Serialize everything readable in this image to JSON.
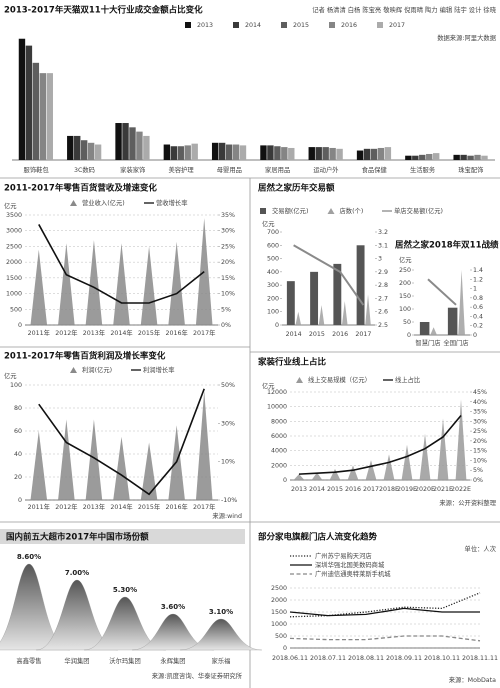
{
  "chart_data": [
    {
      "type": "bar",
      "title": "2013-2017年天猫双11十大行业成交金额占比变化",
      "byline": "记者 杨清清 白杨 陈宝亮 敬映辉 倪雨晴 陶力  编辑 陆宇  设计 徐晓",
      "source": "数据来源:阿里大数据",
      "categories": [
        "服饰鞋包",
        "3C数码",
        "家装家饰",
        "美容护理",
        "母婴用品",
        "家居用品",
        "运动户外",
        "食品保健",
        "生活服务",
        "珠宝配饰"
      ],
      "series": [
        {
          "name": "2013",
          "color": "#111111",
          "values": [
            28.2,
            5.6,
            8.6,
            3.6,
            4.0,
            3.4,
            3.0,
            2.2,
            1.0,
            1.2
          ]
        },
        {
          "name": "2014",
          "color": "#3a3a3a",
          "values": [
            26.6,
            5.6,
            8.6,
            3.2,
            4.0,
            3.4,
            3.0,
            2.6,
            1.0,
            1.2
          ]
        },
        {
          "name": "2015",
          "color": "#5e5e5e",
          "values": [
            22.6,
            4.6,
            7.6,
            3.2,
            3.6,
            3.2,
            3.0,
            2.6,
            1.2,
            1.0
          ]
        },
        {
          "name": "2016",
          "color": "#858585",
          "values": [
            20.2,
            4.0,
            6.6,
            3.4,
            3.6,
            3.0,
            2.8,
            2.8,
            1.4,
            1.2
          ]
        },
        {
          "name": "2017",
          "color": "#ababab",
          "values": [
            20.2,
            3.6,
            5.6,
            3.8,
            3.4,
            2.8,
            2.6,
            3.0,
            1.6,
            1.0
          ]
        }
      ]
    },
    {
      "type": "combo",
      "title": "2011-2017年零售百货营收及增速变化",
      "ylabel": "亿元",
      "categories": [
        "2011年",
        "2012年",
        "2013年",
        "2014年",
        "2015年",
        "2016年",
        "2017年"
      ],
      "series": [
        {
          "name": "营业收入(亿元)",
          "mark": "triangle",
          "color": "#8a8a8a",
          "values": [
            2400,
            2600,
            2700,
            2600,
            2500,
            2650,
            3400
          ]
        },
        {
          "name": "营收增长率",
          "mark": "line",
          "axis": "y2",
          "color": "#111111",
          "values": [
            32,
            16,
            12,
            7,
            7,
            10,
            17
          ]
        }
      ],
      "ylim": [
        0,
        3500
      ],
      "yticks": [
        0,
        500,
        1000,
        1500,
        2000,
        2500,
        3000,
        3500
      ],
      "y2lim": [
        0,
        35
      ],
      "y2ticks": [
        {
          "value": 0,
          "label": "0%"
        },
        {
          "value": 5,
          "label": "5%"
        },
        {
          "value": 10,
          "label": "10%"
        },
        {
          "value": 15,
          "label": "15%"
        },
        {
          "value": 20,
          "label": "20%"
        },
        {
          "value": 25,
          "label": "25%"
        },
        {
          "value": 30,
          "label": "30%"
        },
        {
          "value": 35,
          "label": "35%"
        }
      ],
      "grid": true
    },
    {
      "type": "combo",
      "title": "居然之家历年交易额",
      "ylabel": "亿元",
      "categories": [
        "2014",
        "2015",
        "2016",
        "2017"
      ],
      "series": [
        {
          "name": "交易额(亿元)",
          "mark": "bar",
          "color": "#555555",
          "values": [
            330,
            400,
            460,
            600
          ]
        },
        {
          "name": "店数(个)",
          "mark": "triangle",
          "color": "#a0a0a0",
          "values": [
            100,
            150,
            180,
            230
          ]
        },
        {
          "name": "单店交易额(亿元)",
          "mark": "line",
          "axis": "y2",
          "color": "#8a8a8a",
          "values": [
            3.1,
            3.0,
            2.9,
            2.65
          ]
        }
      ],
      "ylim": [
        0,
        700
      ],
      "yticks": [
        0,
        100,
        200,
        300,
        400,
        500,
        600,
        700
      ],
      "y2lim": [
        2.5,
        3.2
      ],
      "y2ticks": [
        2.5,
        2.6,
        2.7,
        2.8,
        2.9,
        3,
        3.1,
        3.2
      ],
      "grid": false
    },
    {
      "type": "combo",
      "title": "居然之家2018年双11战绩",
      "ylabel": "亿元",
      "categories": [
        "智慧门店",
        "全国门店"
      ],
      "series": [
        {
          "mark": "bar",
          "color": "#555555",
          "values": [
            50,
            105
          ]
        },
        {
          "mark": "triangle",
          "color": "#a0a0a0",
          "values": [
            30,
            250
          ]
        },
        {
          "mark": "line",
          "axis": "y2",
          "color": "#8a8a8a",
          "values": [
            1.2,
            0.65
          ]
        }
      ],
      "ylim": [
        0,
        250
      ],
      "yticks": [
        0,
        50,
        100,
        150,
        200,
        250
      ],
      "y2lim": [
        0,
        1.4
      ],
      "y2ticks": [
        0,
        0.2,
        0.4,
        0.6,
        0.8,
        1,
        1.2,
        1.4
      ],
      "grid": false
    },
    {
      "type": "combo",
      "title": "2011-2017年零售百货利润及增长率变化",
      "ylabel": "亿元",
      "source": "来源:wind",
      "categories": [
        "2011年",
        "2012年",
        "2013年",
        "2014年",
        "2015年",
        "2016年",
        "2017年"
      ],
      "series": [
        {
          "name": "利润(亿元)",
          "mark": "triangle",
          "color": "#8a8a8a",
          "values": [
            60,
            70,
            70,
            55,
            50,
            65,
            95
          ]
        },
        {
          "name": "利润增长率",
          "mark": "line",
          "axis": "y2",
          "color": "#111111",
          "values": [
            40,
            20,
            12,
            3,
            -7,
            10,
            48
          ]
        }
      ],
      "ylim": [
        0,
        100
      ],
      "yticks": [
        0,
        20,
        40,
        60,
        80,
        100
      ],
      "y2lim": [
        -10,
        50
      ],
      "y2ticks": [
        {
          "value": -10,
          "label": "-10%"
        },
        {
          "value": 10,
          "label": "10%"
        },
        {
          "value": 30,
          "label": "30%"
        },
        {
          "value": 50,
          "label": "50%"
        }
      ],
      "grid": true
    },
    {
      "type": "combo",
      "title": "家装行业线上占比",
      "ylabel": "亿元",
      "source": "来源：公开资料整理",
      "categories": [
        "2013",
        "2014",
        "2015",
        "2016",
        "2017",
        "2018E",
        "2019E",
        "2020E",
        "2021E",
        "2022E"
      ],
      "series": [
        {
          "name": "线上交易规模（亿元）",
          "mark": "triangle",
          "color": "#9a9a9a",
          "values": [
            800,
            1000,
            1500,
            2000,
            2700,
            3500,
            4800,
            6300,
            8400,
            11000
          ]
        },
        {
          "name": "线上占比",
          "mark": "line",
          "axis": "y2",
          "color": "#111111",
          "values": [
            3,
            3.5,
            4,
            5,
            7,
            9,
            12,
            16,
            22,
            33
          ]
        }
      ],
      "ylim": [
        0,
        12000
      ],
      "yticks": [
        0,
        2000,
        4000,
        6000,
        8000,
        10000,
        12000
      ],
      "y2lim": [
        0,
        45
      ],
      "y2ticks": [
        {
          "value": 0,
          "label": "0%"
        },
        {
          "value": 5,
          "label": "5%"
        },
        {
          "value": 10,
          "label": "10%"
        },
        {
          "value": 15,
          "label": "15%"
        },
        {
          "value": 20,
          "label": "20%"
        },
        {
          "value": 25,
          "label": "25%"
        },
        {
          "value": 30,
          "label": "30%"
        },
        {
          "value": 35,
          "label": "35%"
        },
        {
          "value": 40,
          "label": "40%"
        },
        {
          "value": 45,
          "label": "45%"
        }
      ],
      "grid": true
    },
    {
      "type": "bell",
      "title": "国内前五大超市2017年中国市场份额",
      "source": "来源:凯度咨询、华泰证券研究所",
      "categories": [
        "高鑫零售",
        "华润集团",
        "沃尔玛集团",
        "永辉集团",
        "家乐福"
      ],
      "values": [
        8.6,
        7.0,
        5.3,
        3.6,
        3.1
      ],
      "value_labels": [
        "8.60%",
        "7.00%",
        "5.30%",
        "3.60%",
        "3.10%"
      ],
      "color": "#8a8a8a"
    },
    {
      "type": "line",
      "title": "部分家电旗舰门店人流变化趋势",
      "unit": "单位：人次",
      "source": "来源：MobData",
      "categories": [
        "2018.06.11",
        "2018.07.11",
        "2018.08.11",
        "2018.09.11",
        "2018.10.11",
        "2018.11.11"
      ],
      "series": [
        {
          "name": "广州苏宁易购天河店",
          "color": "#222222",
          "dash": "dotted",
          "values": [
            1300,
            1350,
            1500,
            1700,
            1650,
            2300
          ]
        },
        {
          "name": "深圳华强北国美数码商城",
          "color": "#111111",
          "dash": "solid",
          "values": [
            1500,
            1350,
            1400,
            1650,
            1500,
            1500
          ]
        },
        {
          "name": "广州迪信通奥特莱斯手机城",
          "color": "#888888",
          "dash": "dashed",
          "values": [
            400,
            350,
            350,
            500,
            500,
            300
          ]
        }
      ],
      "ylim": [
        0,
        2500
      ],
      "yticks": [
        0,
        500,
        1000,
        1500,
        2000,
        2500
      ],
      "grid": true
    }
  ]
}
